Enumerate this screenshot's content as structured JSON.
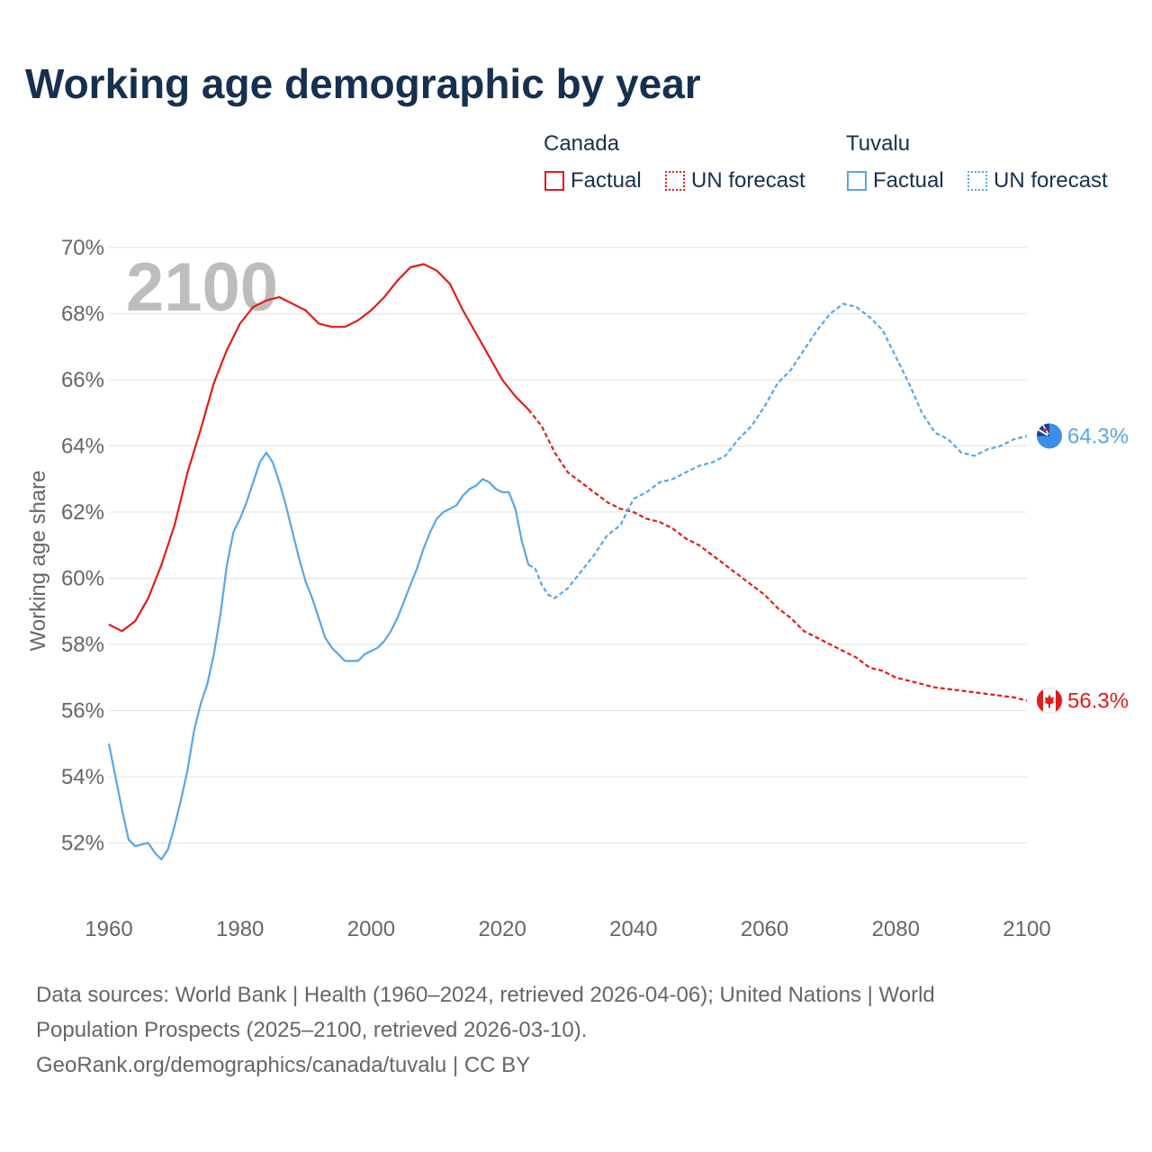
{
  "colors": {
    "canada": "#e21b1b",
    "tuvalu": "#5aa6e4",
    "title": "#17304f",
    "grid": "#e3e3e3",
    "tick": "#666666",
    "year_watermark": "#bdbdbd"
  },
  "legend": {
    "groups": [
      {
        "country": "Canada",
        "factual_label": "Factual",
        "forecast_label": "UN forecast"
      },
      {
        "country": "Tuvalu",
        "factual_label": "Factual",
        "forecast_label": "UN forecast"
      }
    ]
  },
  "source": {
    "line1": "Data sources: World Bank | Health (1960–2024, retrieved 2026-04-06); United Nations | World",
    "line2": "Population Prospects (2025–2100, retrieved 2026-03-10).",
    "line3": "GeoRank.org/demographics/canada/tuvalu | CC BY"
  },
  "chart_data": {
    "type": "line",
    "title": "Working age demographic by year",
    "xlabel": "",
    "ylabel": "Working age share",
    "year_watermark": "2100",
    "xlim": [
      1960,
      2100
    ],
    "ylim": [
      50.0,
      70.0
    ],
    "x_ticks": [
      1960,
      1980,
      2000,
      2020,
      2040,
      2060,
      2080,
      2100
    ],
    "y_ticks": [
      52,
      54,
      56,
      58,
      60,
      62,
      64,
      66,
      68,
      70
    ],
    "tick_suffix": "%",
    "grid": true,
    "legend_position": "top-right",
    "factual_end_year": 2024,
    "series": [
      {
        "name": "Canada",
        "end_label": "56.3%",
        "points": [
          [
            1960,
            58.6
          ],
          [
            1962,
            58.4
          ],
          [
            1964,
            58.7
          ],
          [
            1966,
            59.4
          ],
          [
            1968,
            60.4
          ],
          [
            1970,
            61.6
          ],
          [
            1972,
            63.2
          ],
          [
            1974,
            64.5
          ],
          [
            1976,
            65.9
          ],
          [
            1978,
            66.9
          ],
          [
            1980,
            67.7
          ],
          [
            1982,
            68.2
          ],
          [
            1984,
            68.4
          ],
          [
            1986,
            68.5
          ],
          [
            1988,
            68.3
          ],
          [
            1990,
            68.1
          ],
          [
            1992,
            67.7
          ],
          [
            1994,
            67.6
          ],
          [
            1996,
            67.6
          ],
          [
            1998,
            67.8
          ],
          [
            2000,
            68.1
          ],
          [
            2002,
            68.5
          ],
          [
            2004,
            69.0
          ],
          [
            2006,
            69.4
          ],
          [
            2008,
            69.5
          ],
          [
            2010,
            69.3
          ],
          [
            2012,
            68.9
          ],
          [
            2014,
            68.1
          ],
          [
            2016,
            67.4
          ],
          [
            2018,
            66.7
          ],
          [
            2020,
            66.0
          ],
          [
            2022,
            65.5
          ],
          [
            2024,
            65.1
          ],
          [
            2026,
            64.6
          ],
          [
            2028,
            63.8
          ],
          [
            2030,
            63.2
          ],
          [
            2032,
            62.9
          ],
          [
            2034,
            62.6
          ],
          [
            2036,
            62.3
          ],
          [
            2038,
            62.1
          ],
          [
            2040,
            62.0
          ],
          [
            2042,
            61.8
          ],
          [
            2044,
            61.7
          ],
          [
            2046,
            61.5
          ],
          [
            2048,
            61.2
          ],
          [
            2050,
            61.0
          ],
          [
            2052,
            60.7
          ],
          [
            2054,
            60.4
          ],
          [
            2056,
            60.1
          ],
          [
            2058,
            59.8
          ],
          [
            2060,
            59.5
          ],
          [
            2062,
            59.1
          ],
          [
            2064,
            58.8
          ],
          [
            2066,
            58.4
          ],
          [
            2068,
            58.2
          ],
          [
            2070,
            58.0
          ],
          [
            2072,
            57.8
          ],
          [
            2074,
            57.6
          ],
          [
            2076,
            57.3
          ],
          [
            2078,
            57.2
          ],
          [
            2080,
            57.0
          ],
          [
            2082,
            56.9
          ],
          [
            2084,
            56.8
          ],
          [
            2086,
            56.7
          ],
          [
            2088,
            56.65
          ],
          [
            2090,
            56.6
          ],
          [
            2092,
            56.55
          ],
          [
            2094,
            56.5
          ],
          [
            2096,
            56.45
          ],
          [
            2098,
            56.4
          ],
          [
            2100,
            56.3
          ]
        ]
      },
      {
        "name": "Tuvalu",
        "end_label": "64.3%",
        "points": [
          [
            1960,
            55.0
          ],
          [
            1962,
            53.0
          ],
          [
            1963,
            52.1
          ],
          [
            1964,
            51.9
          ],
          [
            1966,
            52.0
          ],
          [
            1967,
            51.7
          ],
          [
            1968,
            51.5
          ],
          [
            1969,
            51.8
          ],
          [
            1970,
            52.5
          ],
          [
            1971,
            53.3
          ],
          [
            1972,
            54.2
          ],
          [
            1973,
            55.4
          ],
          [
            1974,
            56.2
          ],
          [
            1975,
            56.8
          ],
          [
            1976,
            57.7
          ],
          [
            1977,
            58.9
          ],
          [
            1978,
            60.4
          ],
          [
            1979,
            61.4
          ],
          [
            1980,
            61.8
          ],
          [
            1981,
            62.3
          ],
          [
            1982,
            62.9
          ],
          [
            1983,
            63.5
          ],
          [
            1984,
            63.8
          ],
          [
            1985,
            63.5
          ],
          [
            1986,
            62.9
          ],
          [
            1987,
            62.2
          ],
          [
            1988,
            61.4
          ],
          [
            1989,
            60.6
          ],
          [
            1990,
            59.9
          ],
          [
            1991,
            59.4
          ],
          [
            1992,
            58.8
          ],
          [
            1993,
            58.2
          ],
          [
            1994,
            57.9
          ],
          [
            1995,
            57.7
          ],
          [
            1996,
            57.5
          ],
          [
            1998,
            57.5
          ],
          [
            1999,
            57.7
          ],
          [
            2000,
            57.8
          ],
          [
            2001,
            57.9
          ],
          [
            2002,
            58.1
          ],
          [
            2003,
            58.4
          ],
          [
            2004,
            58.8
          ],
          [
            2005,
            59.3
          ],
          [
            2006,
            59.8
          ],
          [
            2007,
            60.3
          ],
          [
            2008,
            60.9
          ],
          [
            2009,
            61.4
          ],
          [
            2010,
            61.8
          ],
          [
            2011,
            62.0
          ],
          [
            2012,
            62.1
          ],
          [
            2013,
            62.2
          ],
          [
            2014,
            62.5
          ],
          [
            2015,
            62.7
          ],
          [
            2016,
            62.8
          ],
          [
            2017,
            63.0
          ],
          [
            2018,
            62.9
          ],
          [
            2019,
            62.7
          ],
          [
            2020,
            62.6
          ],
          [
            2021,
            62.6
          ],
          [
            2022,
            62.1
          ],
          [
            2023,
            61.1
          ],
          [
            2024,
            60.4
          ],
          [
            2025,
            60.3
          ],
          [
            2026,
            59.8
          ],
          [
            2027,
            59.5
          ],
          [
            2028,
            59.4
          ],
          [
            2030,
            59.7
          ],
          [
            2032,
            60.2
          ],
          [
            2034,
            60.7
          ],
          [
            2036,
            61.3
          ],
          [
            2038,
            61.6
          ],
          [
            2040,
            62.4
          ],
          [
            2042,
            62.6
          ],
          [
            2044,
            62.9
          ],
          [
            2046,
            63.0
          ],
          [
            2048,
            63.2
          ],
          [
            2050,
            63.4
          ],
          [
            2052,
            63.5
          ],
          [
            2054,
            63.7
          ],
          [
            2056,
            64.2
          ],
          [
            2058,
            64.6
          ],
          [
            2060,
            65.2
          ],
          [
            2062,
            65.9
          ],
          [
            2064,
            66.3
          ],
          [
            2066,
            66.9
          ],
          [
            2068,
            67.5
          ],
          [
            2070,
            68.0
          ],
          [
            2072,
            68.3
          ],
          [
            2074,
            68.2
          ],
          [
            2076,
            67.9
          ],
          [
            2078,
            67.5
          ],
          [
            2080,
            66.7
          ],
          [
            2082,
            65.9
          ],
          [
            2084,
            65.0
          ],
          [
            2086,
            64.4
          ],
          [
            2088,
            64.2
          ],
          [
            2090,
            63.8
          ],
          [
            2092,
            63.7
          ],
          [
            2094,
            63.9
          ],
          [
            2096,
            64.0
          ],
          [
            2098,
            64.2
          ],
          [
            2100,
            64.3
          ]
        ]
      }
    ]
  }
}
